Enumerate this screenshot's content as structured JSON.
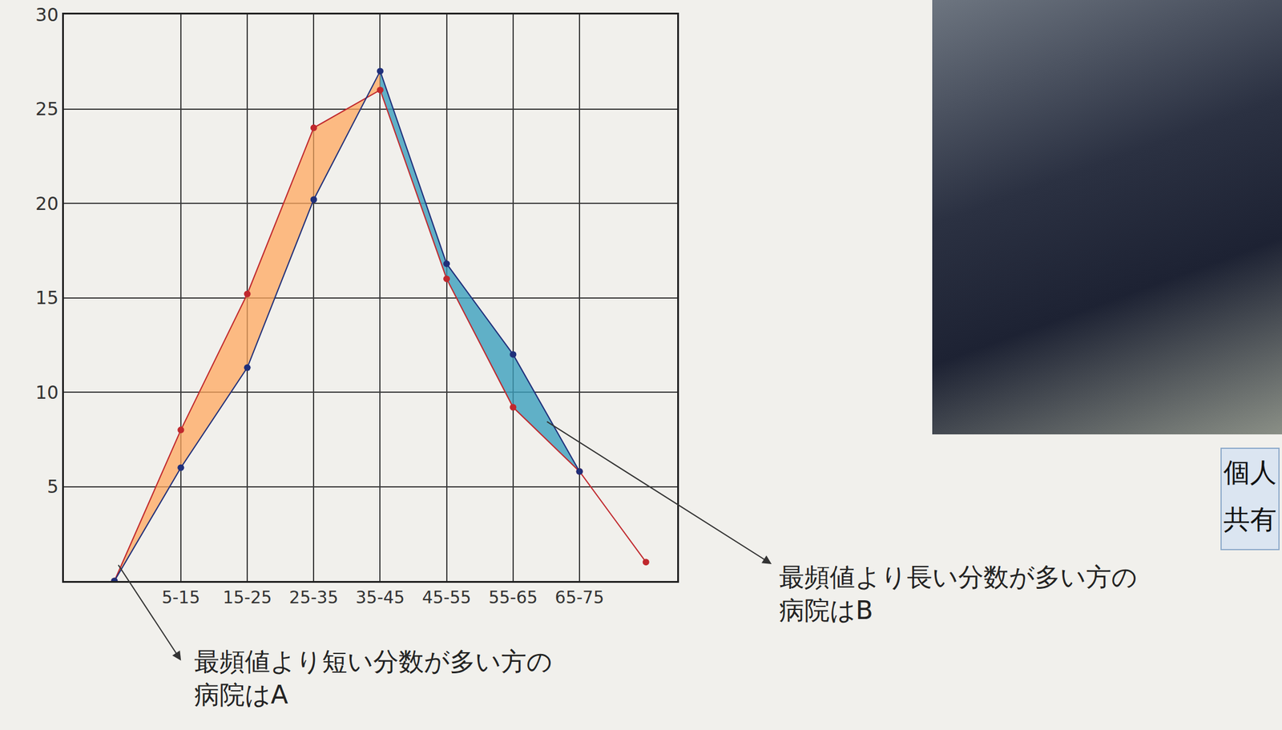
{
  "chart_data": {
    "type": "line",
    "categories": [
      null,
      "5-15",
      "15-25",
      "25-35",
      "35-45",
      "45-55",
      "55-65",
      "65-75",
      null
    ],
    "series": [
      {
        "color": "#c0282d",
        "marker": "circle",
        "values": [
          0,
          8,
          15.2,
          24,
          26,
          16,
          9.2,
          5.8,
          1
        ]
      },
      {
        "color": "#1f2f7a",
        "marker": "circle",
        "values": [
          0,
          6,
          11.3,
          20.2,
          27,
          16.8,
          12,
          5.8,
          null
        ]
      }
    ],
    "ylim": [
      0,
      30
    ],
    "yticks": [
      5,
      10,
      15,
      20,
      25,
      30
    ],
    "grid": true,
    "annotations": [
      {
        "text": [
          "最頻値より短い分数が多い方の",
          "病院はA"
        ]
      },
      {
        "text": [
          "最頻値より長い分数が多い方の",
          "病院はB"
        ]
      }
    ]
  },
  "side_label": [
    "個人",
    "共有"
  ]
}
